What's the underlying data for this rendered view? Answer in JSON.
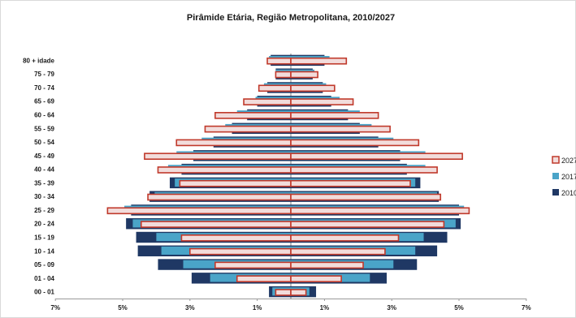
{
  "chart_data": {
    "type": "bar",
    "orientation": "horizontal-population-pyramid",
    "title": "Pirâmide Etária, Região Metropolitana, 2010/2027",
    "categories": [
      "00 - 01",
      "01 - 04",
      "05 - 09",
      "10 - 14",
      "15 - 19",
      "20 - 24",
      "25 - 29",
      "30 - 34",
      "35 - 39",
      "40 - 44",
      "45 - 49",
      "50 - 54",
      "55 - 59",
      "60 - 64",
      "65 - 69",
      "70 - 74",
      "75 - 79",
      "80 + idade"
    ],
    "x_tick_labels": [
      "7%",
      "5%",
      "3%",
      "1%",
      "1%",
      "3%",
      "5%",
      "7%"
    ],
    "xlim": [
      -7,
      7
    ],
    "legend_position": "right",
    "series": [
      {
        "name": "2010",
        "color": "#1f3864",
        "left": [
          0.65,
          2.95,
          3.95,
          4.55,
          4.6,
          4.9,
          4.75,
          4.2,
          3.6,
          3.25,
          2.9,
          2.3,
          1.75,
          1.3,
          1.0,
          0.7,
          0.45,
          0.6
        ],
        "right": [
          0.75,
          2.85,
          3.75,
          4.35,
          4.65,
          5.05,
          5.0,
          4.4,
          3.85,
          3.45,
          3.25,
          2.6,
          2.05,
          1.7,
          1.2,
          0.95,
          0.65,
          1.0
        ]
      },
      {
        "name": "2017",
        "color": "#4aa4c8",
        "left": [
          0.55,
          2.4,
          3.2,
          3.85,
          4.0,
          4.7,
          4.95,
          4.05,
          3.45,
          3.65,
          3.4,
          2.65,
          1.95,
          1.6,
          1.05,
          0.8,
          0.45,
          0.65
        ],
        "right": [
          0.55,
          2.35,
          3.05,
          3.7,
          3.95,
          4.9,
          5.15,
          4.35,
          3.7,
          4.0,
          4.0,
          3.05,
          2.4,
          2.05,
          1.45,
          1.05,
          0.7,
          1.15
        ]
      },
      {
        "name": "2027",
        "color": "#f2dcdb",
        "edge": "#c0392b",
        "left": [
          0.45,
          1.6,
          2.25,
          3.0,
          3.25,
          4.45,
          5.45,
          4.25,
          3.3,
          3.95,
          4.35,
          3.4,
          2.55,
          2.25,
          1.4,
          0.95,
          0.45,
          0.7
        ],
        "right": [
          0.45,
          1.5,
          2.15,
          2.8,
          3.2,
          4.55,
          5.3,
          4.45,
          3.55,
          4.35,
          5.1,
          3.8,
          2.95,
          2.6,
          1.85,
          1.3,
          0.8,
          1.65
        ]
      }
    ]
  }
}
